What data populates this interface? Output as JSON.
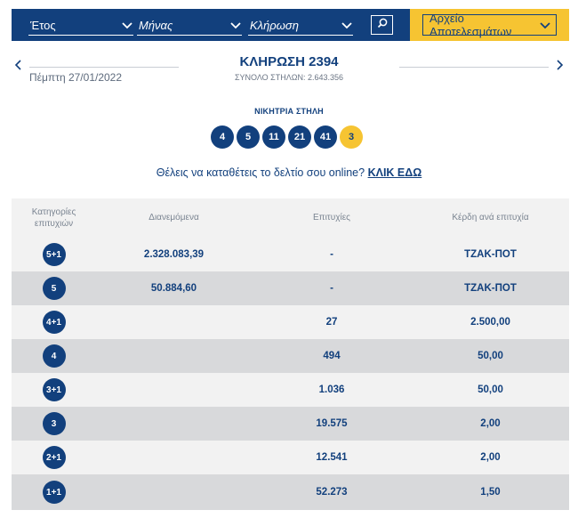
{
  "filters": {
    "year_label": "Έτος",
    "month_label": "Μήνας",
    "draw_label": "Κλήρωση",
    "archive_label": "Αρχείο Αποτελεσμάτων"
  },
  "draw": {
    "date": "Πέμπτη 27/01/2022",
    "title": "ΚΛΗΡΩΣΗ 2394",
    "total_columns": "ΣΥΝΟΛΟ ΣΤΗΛΩΝ: 2.643.356"
  },
  "winning": {
    "label": "ΝΙΚΗΤΡΙΑ ΣΤΗΛΗ",
    "numbers": [
      "4",
      "5",
      "11",
      "21",
      "41"
    ],
    "joker": "3"
  },
  "cta": {
    "text": "Θέλεις να καταθέτεις το δελτίο σου online?",
    "link": "ΚΛΙΚ ΕΔΩ"
  },
  "table": {
    "headers": [
      "Κατηγορίες επιτυχιών",
      "Διανεμόμενα",
      "Επιτυχίες",
      "Κέρδη ανά επιτυχία"
    ],
    "rows": [
      {
        "category": "5+1",
        "distributed": "2.328.083,39",
        "winners": "-",
        "prize": "ΤΖΑΚ-ΠΟΤ"
      },
      {
        "category": "5",
        "distributed": "50.884,60",
        "winners": "-",
        "prize": "ΤΖΑΚ-ΠΟΤ"
      },
      {
        "category": "4+1",
        "distributed": "",
        "winners": "27",
        "prize": "2.500,00"
      },
      {
        "category": "4",
        "distributed": "",
        "winners": "494",
        "prize": "50,00"
      },
      {
        "category": "3+1",
        "distributed": "",
        "winners": "1.036",
        "prize": "50,00"
      },
      {
        "category": "3",
        "distributed": "",
        "winners": "19.575",
        "prize": "2,00"
      },
      {
        "category": "2+1",
        "distributed": "",
        "winners": "12.541",
        "prize": "2,00"
      },
      {
        "category": "1+1",
        "distributed": "",
        "winners": "52.273",
        "prize": "1,50"
      }
    ]
  },
  "icons": {
    "prev": "chevron-left-icon",
    "next": "chevron-right-icon",
    "search": "search-icon",
    "dropdown": "chevron-down-icon"
  },
  "colors": {
    "brand_blue": "#12407d",
    "accent_yellow": "#f6c432",
    "row_light": "#f2f2f2",
    "row_dark": "#d8d9db"
  }
}
